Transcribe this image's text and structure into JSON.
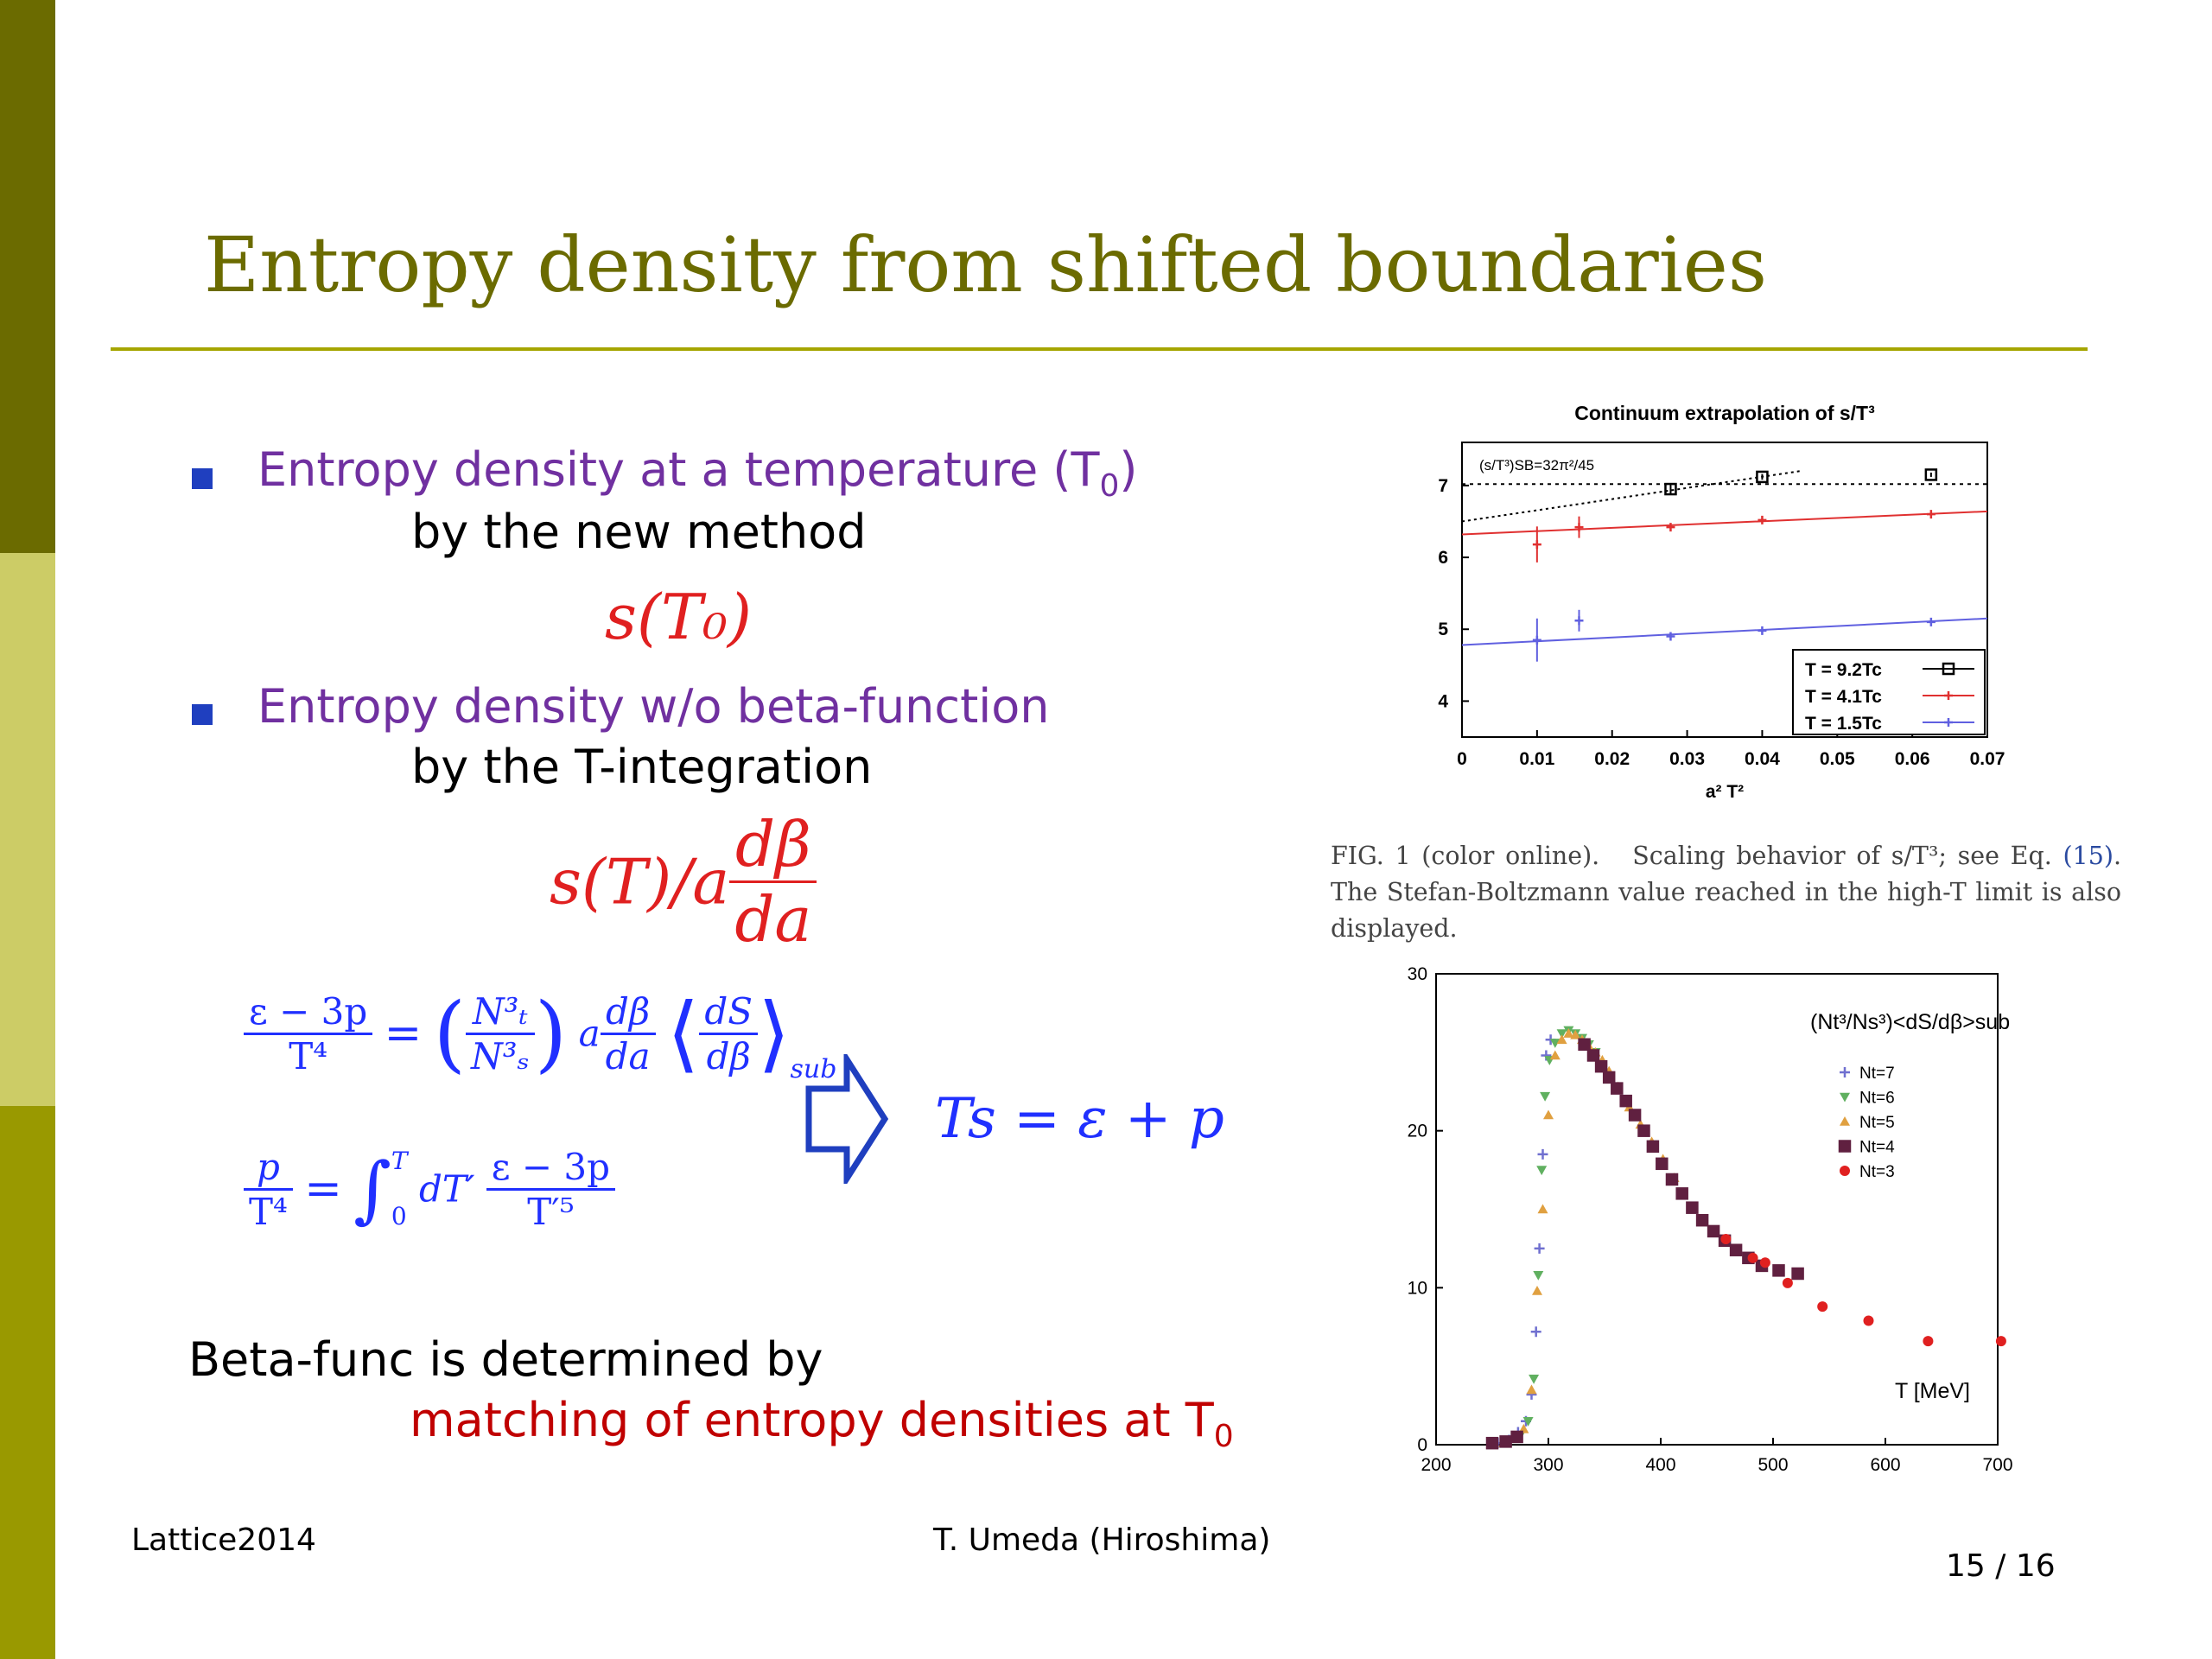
{
  "slide": {
    "title": "Entropy density from shifted boundaries",
    "bullets": [
      {
        "line1": "Entropy density at a temperature (T",
        "line1_sub": "0",
        "line1_end": ")",
        "line2": "by the new method"
      },
      {
        "line1": "Entropy density w/o beta-function",
        "line2": "by the T-integration"
      }
    ],
    "formula1": "s(T₀)",
    "formula2_left": "s(T)/a",
    "formula2_num": "dβ",
    "formula2_den": "da",
    "eq_result": "Ts = ε + p",
    "eq1_lhs_num": "ε − 3p",
    "eq1_lhs_den": "T⁴",
    "eq1_ratio_num": "N³ₜ",
    "eq1_ratio_den": "N³ₛ",
    "eq1_a": "a",
    "eq1_dbeta_num": "dβ",
    "eq1_dbeta_den": "da",
    "eq1_ds_num": "dS",
    "eq1_ds_den": "dβ",
    "eq1_sub": "sub",
    "eq2_lhs_num": "p",
    "eq2_lhs_den": "T⁴",
    "eq2_int_upper": "T",
    "eq2_int_lower": "0",
    "eq2_dT": "dT′",
    "eq2_rhs_num": "ε − 3p",
    "eq2_rhs_den": "T′⁵",
    "beta_line1": "Beta-func is determined by",
    "beta_line2": "matching of entropy densities at T",
    "beta_line2_sub": "0",
    "footer_left": "Lattice2014",
    "footer_center": "T. Umeda (Hiroshima)",
    "page_number": "15 / 16",
    "caption_fig": "FIG. 1 (color online).",
    "caption_text1": "Scaling behavior of s/T³; see Eq.",
    "caption_ref": "(15)",
    "caption_text2": ". The Stefan-Boltzmann value reached in the high-T limit is also displayed.",
    "colors": {
      "title": "#6b6b00",
      "bullet_text": "#7030a0",
      "formula": "#e02020",
      "eq": "#2030ff",
      "arrow": "#1f3fbf"
    }
  },
  "chart_data": [
    {
      "type": "scatter",
      "title": "Continuum extrapolation of s/T³",
      "xlabel": "a² T²",
      "xlim": [
        0,
        0.07
      ],
      "ylim": [
        3.5,
        7.6
      ],
      "xticks": [
        "0",
        "0.01",
        "0.02",
        "0.03",
        "0.04",
        "0.05",
        "0.06",
        "0.07"
      ],
      "yticks": [
        "4",
        "5",
        "6",
        "7"
      ],
      "annotation": "(s/T³)SB=32π²/45",
      "sb_value": 7.02,
      "legend_position": "bottom-right",
      "series": [
        {
          "name": "T = 9.2Tc",
          "color": "#000000",
          "marker": "square",
          "x": [
            0.0278,
            0.04,
            0.0625
          ],
          "y": [
            6.95,
            7.12,
            7.15
          ],
          "err": [
            0.08,
            0.04,
            0.03
          ],
          "fit": [
            [
              0,
              6.5
            ],
            [
              0.045,
              7.2
            ]
          ]
        },
        {
          "name": "T = 4.1Tc",
          "color": "#e03030",
          "marker": "plus",
          "x": [
            0.01,
            0.0156,
            0.0278,
            0.04,
            0.0625
          ],
          "y": [
            6.18,
            6.42,
            6.42,
            6.52,
            6.6
          ],
          "err": [
            0.25,
            0.15,
            0.05,
            0.03,
            0.02
          ],
          "fit": [
            [
              0,
              6.32
            ],
            [
              0.07,
              6.64
            ]
          ]
        },
        {
          "name": "T = 1.5Tc",
          "color": "#6060e0",
          "marker": "plus",
          "x": [
            0.01,
            0.0156,
            0.0278,
            0.04,
            0.0625
          ],
          "y": [
            4.85,
            5.12,
            4.9,
            4.98,
            5.1
          ],
          "err": [
            0.3,
            0.15,
            0.04,
            0.03,
            0.02
          ],
          "fit": [
            [
              0,
              4.78
            ],
            [
              0.07,
              5.15
            ]
          ]
        }
      ]
    },
    {
      "type": "scatter",
      "title": "",
      "annotation": "(Nt³/Ns³)<dS/dβ>sub",
      "xlabel": "T [MeV]",
      "xlim": [
        200,
        700
      ],
      "ylim": [
        0,
        30
      ],
      "xticks": [
        "200",
        "300",
        "400",
        "500",
        "600",
        "700"
      ],
      "yticks": [
        "0",
        "10",
        "20",
        "30"
      ],
      "legend_position": "top-right",
      "series": [
        {
          "name": "Nt=7",
          "color": "#7070d0",
          "marker": "plus",
          "x": [
            255,
            265,
            273,
            280,
            285,
            289,
            292,
            295,
            298,
            302
          ],
          "y": [
            0.1,
            0.3,
            0.8,
            1.5,
            3.2,
            7.2,
            12.5,
            18.5,
            24.8,
            25.8
          ]
        },
        {
          "name": "Nt=6",
          "color": "#60b060",
          "marker": "triangle-down",
          "x": [
            265,
            275,
            282,
            287,
            291,
            294,
            297,
            301,
            306,
            312,
            318,
            324,
            330,
            336,
            342
          ],
          "y": [
            0.2,
            0.6,
            1.5,
            4.2,
            10.8,
            17.5,
            22.2,
            24.5,
            25.6,
            26.2,
            26.4,
            26.2,
            25.9,
            25.5,
            25.0
          ]
        },
        {
          "name": "Nt=5",
          "color": "#e0a040",
          "marker": "triangle-up",
          "x": [
            260,
            270,
            278,
            285,
            290,
            295,
            300,
            306,
            312,
            318,
            324,
            330,
            336,
            342,
            348,
            354,
            362,
            372,
            382,
            392,
            402,
            412
          ],
          "y": [
            0.1,
            0.4,
            1.0,
            3.5,
            9.8,
            15.0,
            21.0,
            24.8,
            25.8,
            26.2,
            26.1,
            25.8,
            25.4,
            25.0,
            24.5,
            23.8,
            22.8,
            21.5,
            20.4,
            19.3,
            18.2,
            17.0
          ]
        },
        {
          "name": "Nt=4",
          "color": "#602040",
          "marker": "square",
          "x": [
            250,
            262,
            272,
            332,
            340,
            347,
            354,
            361,
            369,
            377,
            385,
            393,
            401,
            410,
            419,
            428,
            437,
            447,
            457,
            467,
            478,
            490,
            505,
            522
          ],
          "y": [
            0.1,
            0.2,
            0.5,
            25.5,
            24.8,
            24.1,
            23.4,
            22.7,
            21.9,
            21.0,
            20.0,
            19.0,
            17.9,
            16.9,
            16.0,
            15.1,
            14.3,
            13.6,
            13.0,
            12.4,
            11.9,
            11.4,
            11.1,
            10.9
          ]
        },
        {
          "name": "Nt=3",
          "color": "#e02020",
          "marker": "circle",
          "x": [
            458,
            482,
            493,
            513,
            544,
            585,
            638,
            703
          ],
          "y": [
            13.1,
            11.9,
            11.6,
            10.3,
            8.8,
            7.9,
            6.6,
            6.6
          ]
        }
      ]
    }
  ]
}
